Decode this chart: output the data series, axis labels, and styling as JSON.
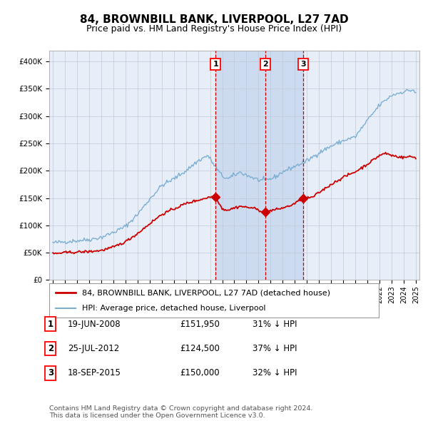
{
  "title": "84, BROWNBILL BANK, LIVERPOOL, L27 7AD",
  "subtitle": "Price paid vs. HM Land Registry's House Price Index (HPI)",
  "title_fontsize": 11,
  "subtitle_fontsize": 9,
  "background_color": "#ffffff",
  "plot_bg_color": "#e8eef8",
  "grid_color": "#c0c8d8",
  "hpi_line_color": "#7bafd4",
  "price_line_color": "#cc0000",
  "shade_color": "#c8d8ee",
  "vline_color": "#cc0000",
  "marker_color": "#cc0000",
  "ylim": [
    0,
    420000
  ],
  "yticks": [
    0,
    50000,
    100000,
    150000,
    200000,
    250000,
    300000,
    350000,
    400000
  ],
  "ytick_labels": [
    "£0",
    "£50K",
    "£100K",
    "£150K",
    "£200K",
    "£250K",
    "£300K",
    "£350K",
    "£400K"
  ],
  "sales": [
    {
      "label": "1",
      "date": "19-JUN-2008",
      "price": "£151,950",
      "pct": "31%",
      "dir": "↓",
      "year": 2008.46
    },
    {
      "label": "2",
      "date": "25-JUL-2012",
      "price": "£124,500",
      "pct": "37%",
      "dir": "↓",
      "year": 2012.56
    },
    {
      "label": "3",
      "date": "18-SEP-2015",
      "price": "£150,000",
      "pct": "32%",
      "dir": "↓",
      "year": 2015.71
    }
  ],
  "sale_prices": [
    151950,
    124500,
    150000
  ],
  "legend1": "84, BROWNBILL BANK, LIVERPOOL, L27 7AD (detached house)",
  "legend2": "HPI: Average price, detached house, Liverpool",
  "footer": "Contains HM Land Registry data © Crown copyright and database right 2024.\nThis data is licensed under the Open Government Licence v3.0.",
  "x_start_year": 1995,
  "x_end_year": 2025
}
